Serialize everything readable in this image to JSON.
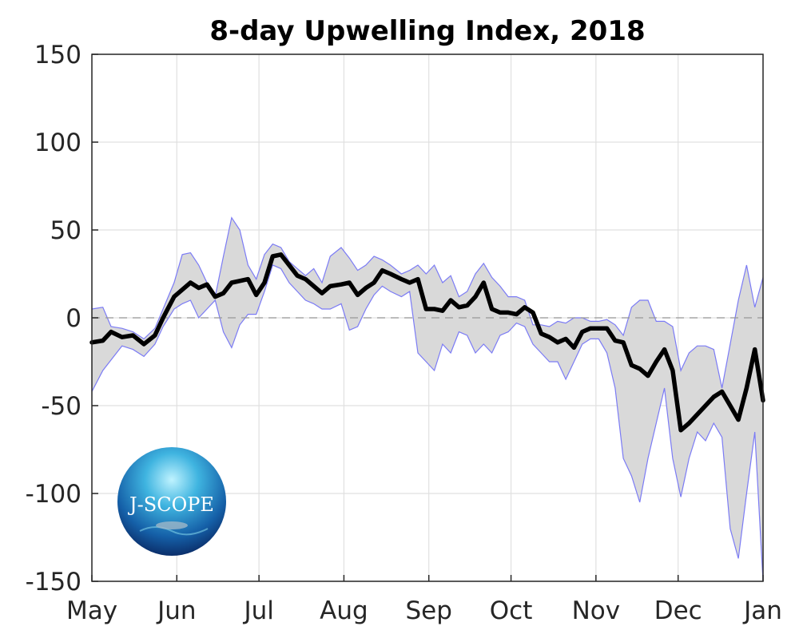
{
  "chart_data": {
    "type": "area",
    "title": "8-day Upwelling Index, 2018",
    "xlabel": "",
    "ylabel": "",
    "ylim": [
      -150,
      150
    ],
    "xlim": [
      "2018-05-01",
      "2019-01-01"
    ],
    "yticks": [
      "150",
      "100",
      "50",
      "0",
      "-50",
      "-100",
      "-150"
    ],
    "ytick_values": [
      150,
      100,
      50,
      0,
      -50,
      -100,
      -150
    ],
    "xticks": [
      "May",
      "Jun",
      "Jul",
      "Aug",
      "Sep",
      "Oct",
      "Nov",
      "Dec",
      "Jan"
    ],
    "xtick_dates": [
      "2018-05-01",
      "2018-06-01",
      "2018-07-01",
      "2018-08-01",
      "2018-09-01",
      "2018-10-01",
      "2018-11-01",
      "2018-12-01",
      "2019-01-01"
    ],
    "grid": true,
    "zero_line": "dashed",
    "colors": {
      "mean": "#000000",
      "band_fill": "#d9d9d9",
      "band_edge": "#7b7bf5",
      "grid": "#e0e0e0"
    },
    "x": [
      "2018-05-01",
      "2018-05-05",
      "2018-05-08",
      "2018-05-12",
      "2018-05-16",
      "2018-05-20",
      "2018-05-24",
      "2018-05-27",
      "2018-05-31",
      "2018-06-03",
      "2018-06-06",
      "2018-06-09",
      "2018-06-12",
      "2018-06-15",
      "2018-06-18",
      "2018-06-21",
      "2018-06-24",
      "2018-06-27",
      "2018-06-30",
      "2018-07-03",
      "2018-07-06",
      "2018-07-09",
      "2018-07-12",
      "2018-07-15",
      "2018-07-18",
      "2018-07-21",
      "2018-07-24",
      "2018-07-27",
      "2018-07-31",
      "2018-08-03",
      "2018-08-06",
      "2018-08-09",
      "2018-08-12",
      "2018-08-15",
      "2018-08-18",
      "2018-08-22",
      "2018-08-25",
      "2018-08-28",
      "2018-08-31",
      "2018-09-03",
      "2018-09-06",
      "2018-09-09",
      "2018-09-12",
      "2018-09-15",
      "2018-09-18",
      "2018-09-21",
      "2018-09-24",
      "2018-09-27",
      "2018-09-30",
      "2018-10-03",
      "2018-10-06",
      "2018-10-09",
      "2018-10-12",
      "2018-10-15",
      "2018-10-18",
      "2018-10-21",
      "2018-10-24",
      "2018-10-27",
      "2018-10-30",
      "2018-11-02",
      "2018-11-05",
      "2018-11-08",
      "2018-11-11",
      "2018-11-14",
      "2018-11-17",
      "2018-11-20",
      "2018-11-23",
      "2018-11-26",
      "2018-11-29",
      "2018-12-02",
      "2018-12-05",
      "2018-12-08",
      "2018-12-11",
      "2018-12-14",
      "2018-12-17",
      "2018-12-20",
      "2018-12-23",
      "2018-12-26",
      "2018-12-29",
      "2019-01-01"
    ],
    "series": [
      {
        "role": "mean",
        "values": [
          -14,
          -13,
          -8,
          -11,
          -10,
          -15,
          -10,
          0,
          12,
          16,
          20,
          17,
          19,
          12,
          14,
          20,
          21,
          22,
          13,
          20,
          35,
          36,
          30,
          24,
          22,
          18,
          14,
          18,
          19,
          20,
          13,
          17,
          20,
          27,
          25,
          22,
          20,
          22,
          5,
          5,
          4,
          10,
          6,
          7,
          12,
          20,
          5,
          3,
          3,
          2,
          6,
          3,
          -9,
          -11,
          -14,
          -12,
          -17,
          -8,
          -6,
          -6,
          -6,
          -13,
          -14,
          -27,
          -29,
          -33,
          -25,
          -18,
          -30,
          -64,
          -60,
          -55,
          -50,
          -45,
          -42,
          -50,
          -58,
          -40,
          -18,
          -47
        ]
      },
      {
        "role": "upper",
        "values": [
          5,
          6,
          -5,
          -6,
          -8,
          -12,
          -6,
          5,
          20,
          36,
          37,
          30,
          20,
          12,
          35,
          57,
          50,
          30,
          22,
          36,
          42,
          40,
          32,
          28,
          24,
          28,
          20,
          35,
          40,
          34,
          27,
          30,
          35,
          33,
          30,
          25,
          27,
          30,
          25,
          30,
          20,
          24,
          12,
          15,
          25,
          31,
          23,
          18,
          12,
          12,
          10,
          -4,
          -4,
          -5,
          -2,
          -3,
          0,
          0,
          -2,
          -2,
          -1,
          -4,
          -10,
          6,
          10,
          10,
          -2,
          -2,
          -5,
          -30,
          -20,
          -16,
          -16,
          -18,
          -40,
          -15,
          10,
          30,
          6,
          23
        ]
      },
      {
        "role": "lower",
        "values": [
          -42,
          -30,
          -24,
          -16,
          -18,
          -22,
          -15,
          -5,
          5,
          8,
          10,
          0,
          5,
          10,
          -8,
          -17,
          -4,
          2,
          2,
          15,
          30,
          28,
          20,
          15,
          10,
          8,
          5,
          5,
          8,
          -7,
          -5,
          5,
          13,
          18,
          15,
          12,
          15,
          -20,
          -25,
          -30,
          -15,
          -20,
          -8,
          -10,
          -20,
          -15,
          -20,
          -10,
          -8,
          -3,
          -5,
          -15,
          -20,
          -25,
          -25,
          -35,
          -25,
          -15,
          -12,
          -12,
          -20,
          -40,
          -80,
          -90,
          -105,
          -80,
          -60,
          -40,
          -80,
          -102,
          -80,
          -65,
          -70,
          -60,
          -68,
          -120,
          -137,
          -100,
          -65,
          -150
        ]
      }
    ]
  },
  "logo": {
    "text": "J-SCOPE"
  }
}
